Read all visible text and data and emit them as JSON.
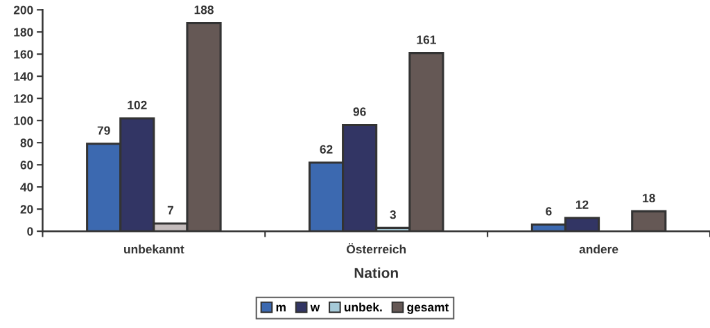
{
  "chart_data": {
    "type": "bar",
    "xlabel": "Nation",
    "categories": [
      "unbekannt",
      "Österreich",
      "andere"
    ],
    "series": [
      {
        "name": "m",
        "color": "#3c69b0",
        "values": [
          79,
          62,
          6
        ]
      },
      {
        "name": "w",
        "color": "#323564",
        "values": [
          102,
          96,
          12
        ]
      },
      {
        "name": "unbek.",
        "color": "#a6cad8",
        "colors": [
          "#c4bcbc",
          "#a6cad8",
          "#a6cad8"
        ],
        "values": [
          7,
          3,
          null
        ]
      },
      {
        "name": "gesamt",
        "color": "#655855",
        "values": [
          188,
          161,
          18
        ]
      }
    ],
    "ylim": [
      0,
      200
    ],
    "yticks": [
      0,
      20,
      40,
      60,
      80,
      100,
      120,
      140,
      160,
      180,
      200
    ],
    "data_labels": true,
    "grid": false,
    "legend": "bottom"
  }
}
